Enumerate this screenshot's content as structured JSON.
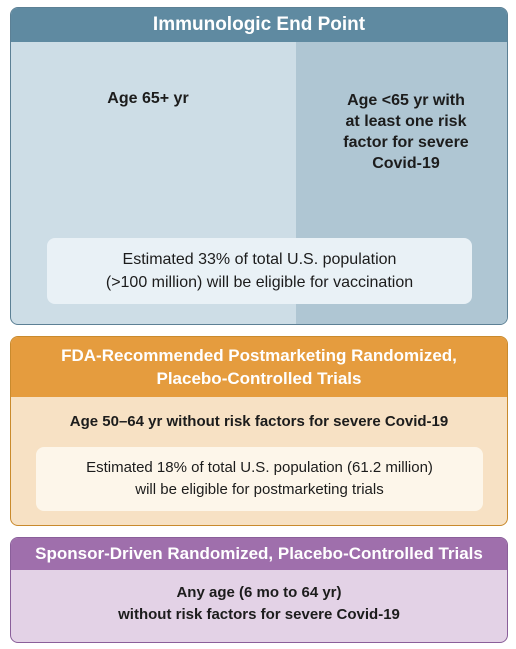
{
  "panel1": {
    "title": "Immunologic End Point",
    "left_label": "Age 65+ yr",
    "right_label": "Age <65 yr with\nat least one risk\nfactor for severe\nCovid-19",
    "estimate": "Estimated 33% of total U.S. population\n(>100 million) will be eligible for vaccination"
  },
  "panel2": {
    "title": "FDA-Recommended Postmarketing Randomized,\nPlacebo-Controlled Trials",
    "label": "Age 50–64 yr without risk factors for severe Covid-19",
    "estimate": "Estimated 18% of total U.S. population (61.2 million)\nwill be eligible for postmarketing trials"
  },
  "panel3": {
    "title": "Sponsor-Driven Randomized, Placebo-Controlled Trials",
    "label": "Any age (6 mo to 64 yr)\nwithout risk factors for severe Covid-19"
  },
  "colors": {
    "blue_header": "#5f8aa1",
    "blue_left": "#cddde6",
    "blue_right": "#afc6d3",
    "orange_header": "#e59c3e",
    "orange_body": "#f7e1c4",
    "purple_header": "#9f6fac",
    "purple_body": "#e3d2e6"
  }
}
